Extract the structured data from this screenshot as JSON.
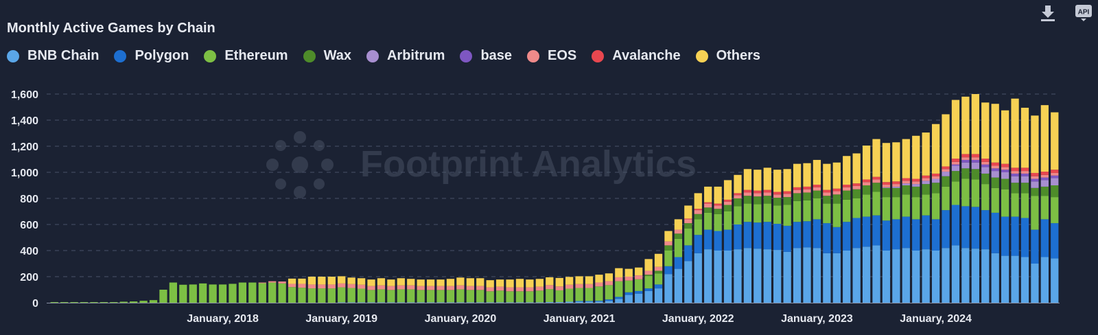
{
  "title": "Monthly Active Games by Chain",
  "toolbar": {
    "download_icon": "download-icon",
    "api_icon": "api-icon",
    "api_label": "API"
  },
  "watermark": "Footprint Analytics",
  "chart_data": {
    "type": "bar",
    "stacked": true,
    "title": "Monthly Active Games by Chain",
    "xlabel": "",
    "ylabel": "",
    "ylim": [
      0,
      1700
    ],
    "yticks": [
      0,
      200,
      400,
      600,
      800,
      1000,
      1200,
      1400,
      1600
    ],
    "ytick_labels": [
      "0",
      "200",
      "400",
      "600",
      "800",
      "1,000",
      "1,200",
      "1,400",
      "1,600"
    ],
    "grid": true,
    "legend_position": "top-left",
    "xtick_labels": [
      {
        "index": 17,
        "label": "January, 2018"
      },
      {
        "index": 29,
        "label": "January, 2019"
      },
      {
        "index": 41,
        "label": "January, 2020"
      },
      {
        "index": 53,
        "label": "January, 2021"
      },
      {
        "index": 65,
        "label": "January, 2022"
      },
      {
        "index": 77,
        "label": "January, 2023"
      },
      {
        "index": 89,
        "label": "January, 2024"
      }
    ],
    "first_month": "2016-08",
    "series": [
      {
        "name": "BNB Chain",
        "color": "#5aa6e8",
        "values": [
          0,
          0,
          0,
          0,
          0,
          0,
          0,
          0,
          0,
          0,
          0,
          0,
          0,
          0,
          0,
          0,
          0,
          0,
          0,
          0,
          0,
          0,
          0,
          0,
          0,
          0,
          0,
          0,
          0,
          3,
          3,
          3,
          3,
          3,
          3,
          3,
          3,
          3,
          3,
          3,
          3,
          3,
          3,
          3,
          3,
          3,
          3,
          3,
          3,
          3,
          5,
          5,
          8,
          8,
          8,
          10,
          15,
          30,
          60,
          70,
          90,
          110,
          220,
          260,
          320,
          380,
          410,
          400,
          400,
          410,
          420,
          415,
          410,
          405,
          390,
          420,
          425,
          420,
          380,
          380,
          400,
          420,
          430,
          440,
          400,
          410,
          420,
          400,
          410,
          400,
          420,
          440,
          420,
          415,
          410,
          380,
          360,
          360,
          350,
          300,
          350,
          340
        ]
      },
      {
        "name": "Polygon",
        "color": "#1d6fd1",
        "values": [
          0,
          0,
          0,
          0,
          0,
          0,
          0,
          0,
          0,
          0,
          0,
          0,
          0,
          0,
          0,
          0,
          0,
          0,
          0,
          0,
          0,
          0,
          0,
          0,
          0,
          0,
          0,
          0,
          0,
          0,
          0,
          0,
          0,
          0,
          0,
          0,
          0,
          0,
          0,
          0,
          0,
          0,
          0,
          0,
          0,
          0,
          0,
          0,
          0,
          0,
          0,
          0,
          0,
          5,
          5,
          5,
          10,
          15,
          20,
          20,
          20,
          30,
          60,
          90,
          120,
          140,
          150,
          150,
          160,
          190,
          200,
          200,
          210,
          200,
          200,
          200,
          200,
          220,
          230,
          200,
          220,
          230,
          230,
          230,
          230,
          230,
          240,
          240,
          260,
          240,
          290,
          310,
          320,
          320,
          300,
          310,
          300,
          300,
          300,
          260,
          290,
          270
        ]
      },
      {
        "name": "Ethereum",
        "color": "#7dbf44",
        "values": [
          5,
          5,
          5,
          5,
          5,
          5,
          5,
          8,
          10,
          15,
          20,
          100,
          155,
          138,
          140,
          148,
          140,
          140,
          145,
          155,
          155,
          150,
          155,
          148,
          120,
          115,
          110,
          110,
          110,
          115,
          110,
          105,
          95,
          100,
          95,
          100,
          100,
          95,
          95,
          95,
          95,
          100,
          95,
          95,
          85,
          90,
          85,
          85,
          85,
          90,
          100,
          90,
          100,
          100,
          100,
          110,
          110,
          120,
          90,
          90,
          95,
          85,
          120,
          140,
          130,
          120,
          130,
          130,
          140,
          140,
          140,
          140,
          140,
          140,
          160,
          160,
          160,
          160,
          150,
          180,
          170,
          150,
          170,
          180,
          180,
          170,
          170,
          170,
          160,
          200,
          180,
          180,
          210,
          210,
          200,
          190,
          210,
          180,
          190,
          260,
          180,
          200
        ]
      },
      {
        "name": "Wax",
        "color": "#4e8c2a",
        "values": [
          0,
          0,
          0,
          0,
          0,
          0,
          0,
          0,
          0,
          0,
          0,
          0,
          0,
          0,
          0,
          0,
          0,
          0,
          0,
          0,
          0,
          0,
          0,
          0,
          0,
          0,
          0,
          0,
          0,
          0,
          0,
          0,
          0,
          0,
          0,
          0,
          0,
          0,
          0,
          0,
          0,
          0,
          0,
          0,
          0,
          0,
          0,
          0,
          0,
          0,
          0,
          0,
          0,
          0,
          0,
          0,
          0,
          0,
          0,
          0,
          10,
          20,
          40,
          40,
          40,
          40,
          40,
          40,
          50,
          60,
          60,
          60,
          60,
          60,
          60,
          60,
          60,
          60,
          60,
          70,
          70,
          70,
          70,
          70,
          70,
          70,
          70,
          80,
          80,
          80,
          80,
          80,
          80,
          80,
          80,
          80,
          80,
          80,
          80,
          60,
          70,
          90
        ]
      },
      {
        "name": "Arbitrum",
        "color": "#a88fd0",
        "values": [
          0,
          0,
          0,
          0,
          0,
          0,
          0,
          0,
          0,
          0,
          0,
          0,
          0,
          0,
          0,
          0,
          0,
          0,
          0,
          0,
          0,
          0,
          0,
          0,
          0,
          0,
          0,
          0,
          0,
          0,
          0,
          0,
          0,
          0,
          0,
          0,
          0,
          0,
          0,
          0,
          0,
          0,
          0,
          0,
          0,
          0,
          0,
          0,
          0,
          0,
          0,
          0,
          0,
          0,
          0,
          0,
          0,
          0,
          0,
          0,
          0,
          0,
          0,
          0,
          0,
          0,
          0,
          0,
          0,
          0,
          0,
          0,
          0,
          0,
          0,
          0,
          0,
          0,
          0,
          0,
          0,
          0,
          0,
          0,
          5,
          10,
          15,
          20,
          25,
          30,
          35,
          40,
          45,
          50,
          50,
          50,
          50,
          50,
          50,
          50,
          50,
          55
        ]
      },
      {
        "name": "base",
        "color": "#7e57c2",
        "values": [
          0,
          0,
          0,
          0,
          0,
          0,
          0,
          0,
          0,
          0,
          0,
          0,
          0,
          0,
          0,
          0,
          0,
          0,
          0,
          0,
          0,
          0,
          0,
          0,
          0,
          0,
          0,
          0,
          0,
          0,
          0,
          0,
          0,
          0,
          0,
          0,
          0,
          0,
          0,
          0,
          0,
          0,
          0,
          0,
          0,
          0,
          0,
          0,
          0,
          0,
          0,
          0,
          0,
          0,
          0,
          0,
          0,
          0,
          0,
          0,
          0,
          0,
          0,
          0,
          0,
          0,
          0,
          0,
          0,
          0,
          0,
          0,
          0,
          0,
          0,
          0,
          0,
          0,
          0,
          0,
          0,
          0,
          0,
          0,
          0,
          0,
          0,
          0,
          0,
          0,
          0,
          10,
          20,
          20,
          20,
          20,
          20,
          20,
          20,
          20,
          20,
          20
        ]
      },
      {
        "name": "EOS",
        "color": "#ef8a8a",
        "values": [
          0,
          0,
          0,
          0,
          0,
          0,
          0,
          0,
          0,
          0,
          0,
          0,
          0,
          0,
          0,
          0,
          0,
          0,
          0,
          0,
          0,
          5,
          10,
          15,
          25,
          30,
          30,
          30,
          30,
          30,
          30,
          30,
          30,
          30,
          30,
          30,
          30,
          30,
          30,
          30,
          30,
          30,
          30,
          30,
          30,
          30,
          30,
          30,
          30,
          30,
          30,
          30,
          30,
          30,
          30,
          30,
          30,
          30,
          30,
          30,
          30,
          30,
          30,
          30,
          30,
          30,
          30,
          25,
          25,
          25,
          25,
          25,
          25,
          25,
          25,
          25,
          25,
          25,
          25,
          25,
          25,
          25,
          25,
          25,
          20,
          20,
          20,
          20,
          20,
          20,
          20,
          20,
          20,
          20,
          20,
          20,
          20,
          20,
          20,
          20,
          20,
          20
        ]
      },
      {
        "name": "Avalanche",
        "color": "#e8474f",
        "values": [
          0,
          0,
          0,
          0,
          0,
          0,
          0,
          0,
          0,
          0,
          0,
          0,
          0,
          0,
          0,
          0,
          0,
          0,
          0,
          0,
          0,
          0,
          0,
          0,
          0,
          0,
          0,
          0,
          0,
          0,
          0,
          0,
          0,
          0,
          0,
          0,
          0,
          0,
          0,
          0,
          0,
          0,
          0,
          0,
          0,
          0,
          0,
          0,
          0,
          0,
          0,
          0,
          0,
          0,
          0,
          0,
          0,
          0,
          0,
          0,
          0,
          0,
          0,
          0,
          5,
          10,
          10,
          15,
          15,
          15,
          20,
          20,
          20,
          20,
          20,
          20,
          20,
          20,
          20,
          20,
          20,
          20,
          20,
          20,
          20,
          20,
          20,
          20,
          20,
          20,
          20,
          25,
          25,
          25,
          25,
          25,
          25,
          25,
          25,
          25,
          25,
          25
        ]
      },
      {
        "name": "Others",
        "color": "#f7d154",
        "values": [
          0,
          0,
          0,
          0,
          0,
          0,
          0,
          0,
          0,
          0,
          0,
          0,
          0,
          0,
          0,
          0,
          0,
          0,
          0,
          0,
          0,
          0,
          0,
          0,
          40,
          40,
          60,
          60,
          60,
          55,
          50,
          50,
          50,
          55,
          50,
          55,
          50,
          50,
          50,
          50,
          55,
          60,
          60,
          60,
          55,
          55,
          60,
          65,
          60,
          60,
          60,
          65,
          60,
          60,
          60,
          60,
          60,
          70,
          60,
          60,
          90,
          100,
          80,
          80,
          100,
          120,
          120,
          130,
          150,
          140,
          160,
          160,
          170,
          170,
          170,
          180,
          180,
          190,
          200,
          200,
          220,
          230,
          260,
          290,
          300,
          300,
          300,
          330,
          330,
          380,
          400,
          450,
          440,
          460,
          430,
          450,
          410,
          530,
          460,
          440,
          510,
          440
        ]
      }
    ]
  }
}
